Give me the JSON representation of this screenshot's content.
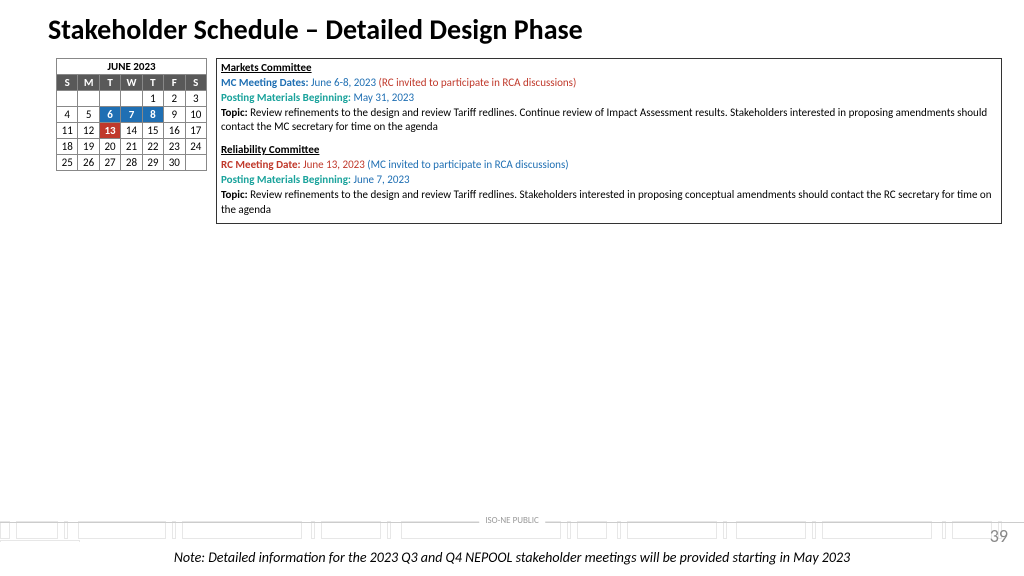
{
  "title": "Stakeholder Schedule – Detailed Design Phase",
  "calendar": {
    "month": "JUNE 2023",
    "dow": [
      "S",
      "M",
      "T",
      "W",
      "T",
      "F",
      "S"
    ],
    "cells": [
      [
        "",
        "",
        "",
        "",
        "1",
        "2",
        "3"
      ],
      [
        "4",
        "5",
        "6",
        "7",
        "8",
        "9",
        "10"
      ],
      [
        "11",
        "12",
        "13",
        "14",
        "15",
        "16",
        "17"
      ],
      [
        "18",
        "19",
        "20",
        "21",
        "22",
        "23",
        "24"
      ],
      [
        "25",
        "26",
        "27",
        "28",
        "29",
        "30",
        ""
      ]
    ],
    "highlight_blue": [
      "6",
      "7",
      "8"
    ],
    "highlight_red": [
      "13"
    ],
    "header_bg": "#595959",
    "blue": "#1f6fb3",
    "red": "#c0392b"
  },
  "markets": {
    "title": "Markets Committee",
    "dates_label": "MC Meeting Dates:",
    "dates": " June 6-8, 2023 ",
    "rc_note": "(RC invited to participate in RCA discussions)",
    "posting_label": "Posting Materials Beginning:",
    "posting": " May 31, 2023",
    "topic_label": "Topic:",
    "topic": " Review refinements to the design and review Tariff redlines. Continue review of Impact Assessment results. Stakeholders interested in proposing amendments should contact the MC secretary for time on the agenda"
  },
  "reliability": {
    "title": "Reliability Committee",
    "date_label": "RC Meeting Date:",
    "date": " June 13, 2023 ",
    "mc_note": "(MC invited to participate in RCA discussions)",
    "posting_label": "Posting Materials Beginning:",
    "posting": " June 7, 2023",
    "topic_label": "Topic:",
    "topic": " Review refinements to the design and review Tariff redlines. Stakeholders interested in proposing conceptual amendments should contact the RC secretary for time on the agenda"
  },
  "footer": {
    "tag": "ISO-NE PUBLIC",
    "page": "39",
    "note": "Note: Detailed information for the 2023 Q3 and Q4 NEPOOL stakeholder meetings will be provided starting in May 2023"
  }
}
